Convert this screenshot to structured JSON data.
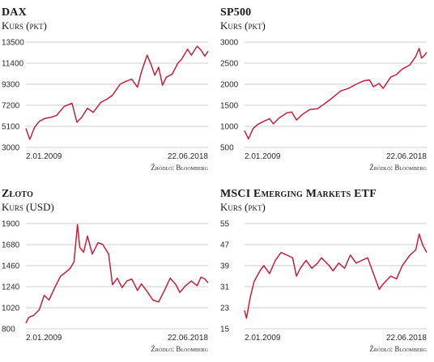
{
  "colors": {
    "line": "#c4203a",
    "grid": "#9a9a9a",
    "text": "#1a1a1a"
  },
  "chart_data": [
    {
      "type": "line",
      "title": "DAX",
      "ylabel": "Kurs (pkt)",
      "start_label": "2.01.2009",
      "end_label": "22.06.2018",
      "source": "Źródło: Bloomberg",
      "yticks": [
        3000,
        5100,
        7200,
        9300,
        11400,
        13500
      ],
      "ylim": [
        3000,
        13500
      ],
      "grid": true,
      "x": [
        2009.0,
        2009.2,
        2009.45,
        2009.7,
        2010.0,
        2010.3,
        2010.6,
        2011.0,
        2011.4,
        2011.65,
        2011.9,
        2012.2,
        2012.5,
        2012.9,
        2013.2,
        2013.5,
        2013.9,
        2014.2,
        2014.5,
        2014.8,
        2015.0,
        2015.3,
        2015.5,
        2015.7,
        2015.9,
        2016.1,
        2016.3,
        2016.6,
        2016.9,
        2017.1,
        2017.4,
        2017.6,
        2017.9,
        2018.1,
        2018.3,
        2018.47
      ],
      "y": [
        4900,
        3800,
        5000,
        5600,
        5900,
        6000,
        6200,
        7100,
        7400,
        5500,
        6000,
        6900,
        6500,
        7500,
        7800,
        8200,
        9300,
        9600,
        9800,
        9000,
        10500,
        12200,
        11300,
        10200,
        11000,
        9200,
        10000,
        10300,
        11400,
        11800,
        12800,
        12200,
        13100,
        12700,
        12100,
        12600
      ]
    },
    {
      "type": "line",
      "title": "SP500",
      "ylabel": "Kurs (pkt)",
      "start_label": "2.01.2009",
      "end_label": "22.06.2018",
      "source": "Źródło: Bloomberg",
      "yticks": [
        500,
        1000,
        1500,
        2000,
        2500,
        3000
      ],
      "ylim": [
        500,
        3000
      ],
      "grid": true,
      "x": [
        2009.0,
        2009.2,
        2009.45,
        2009.7,
        2010.0,
        2010.3,
        2010.5,
        2010.8,
        2011.2,
        2011.45,
        2011.7,
        2012.0,
        2012.4,
        2012.8,
        2013.2,
        2013.6,
        2014.0,
        2014.4,
        2014.8,
        2015.2,
        2015.5,
        2015.7,
        2016.0,
        2016.2,
        2016.6,
        2016.9,
        2017.2,
        2017.6,
        2017.9,
        2018.08,
        2018.2,
        2018.35,
        2018.47
      ],
      "y": [
        900,
        700,
        950,
        1050,
        1120,
        1180,
        1060,
        1200,
        1320,
        1340,
        1150,
        1280,
        1400,
        1420,
        1550,
        1690,
        1840,
        1900,
        2000,
        2080,
        2100,
        1940,
        2020,
        1900,
        2170,
        2230,
        2360,
        2460,
        2660,
        2850,
        2620,
        2680,
        2760
      ]
    },
    {
      "type": "line",
      "title": "Złoto",
      "ylabel": "Kurs (USD)",
      "start_label": "2.01.2009",
      "end_label": "22.06.2018",
      "source": "Źródło: Bloomberg",
      "yticks": [
        800,
        1020,
        1240,
        1460,
        1680,
        1900
      ],
      "ylim": [
        800,
        1900
      ],
      "grid": true,
      "x": [
        2009.0,
        2009.15,
        2009.4,
        2009.7,
        2009.95,
        2010.2,
        2010.5,
        2010.8,
        2011.0,
        2011.3,
        2011.5,
        2011.68,
        2011.8,
        2012.0,
        2012.2,
        2012.45,
        2012.75,
        2013.0,
        2013.3,
        2013.5,
        2013.75,
        2014.0,
        2014.25,
        2014.5,
        2014.8,
        2015.0,
        2015.3,
        2015.6,
        2015.9,
        2016.2,
        2016.5,
        2016.8,
        2017.0,
        2017.3,
        2017.6,
        2017.9,
        2018.1,
        2018.3,
        2018.47
      ],
      "y": [
        860,
        920,
        940,
        1000,
        1150,
        1100,
        1230,
        1350,
        1380,
        1430,
        1500,
        1890,
        1650,
        1600,
        1770,
        1580,
        1700,
        1680,
        1580,
        1260,
        1330,
        1230,
        1300,
        1320,
        1200,
        1270,
        1190,
        1100,
        1080,
        1200,
        1330,
        1260,
        1180,
        1250,
        1300,
        1250,
        1340,
        1320,
        1280
      ]
    },
    {
      "type": "line",
      "title": "MSCI Emerging Markets ETF",
      "ylabel": "Kurs (pkt)",
      "start_label": "2.01.2009",
      "end_label": "22.06.2018",
      "source": "Źródło: Bloomberg",
      "yticks": [
        15,
        23,
        31,
        39,
        47,
        55
      ],
      "ylim": [
        15,
        55
      ],
      "grid": true,
      "x": [
        2009.0,
        2009.1,
        2009.3,
        2009.5,
        2009.8,
        2010.0,
        2010.3,
        2010.6,
        2010.9,
        2011.2,
        2011.5,
        2011.7,
        2011.9,
        2012.2,
        2012.5,
        2012.8,
        2013.0,
        2013.4,
        2013.6,
        2013.9,
        2014.2,
        2014.5,
        2014.8,
        2015.1,
        2015.4,
        2015.7,
        2016.0,
        2016.2,
        2016.6,
        2016.9,
        2017.2,
        2017.6,
        2017.9,
        2018.08,
        2018.25,
        2018.47
      ],
      "y": [
        22,
        19,
        27,
        33,
        37,
        39,
        36,
        41,
        44,
        43,
        42,
        35,
        38,
        41,
        38,
        40,
        42,
        39,
        37,
        40,
        38,
        43,
        40,
        41,
        42,
        36,
        30,
        32,
        35,
        34,
        39,
        43,
        45,
        51,
        47,
        44
      ]
    }
  ]
}
